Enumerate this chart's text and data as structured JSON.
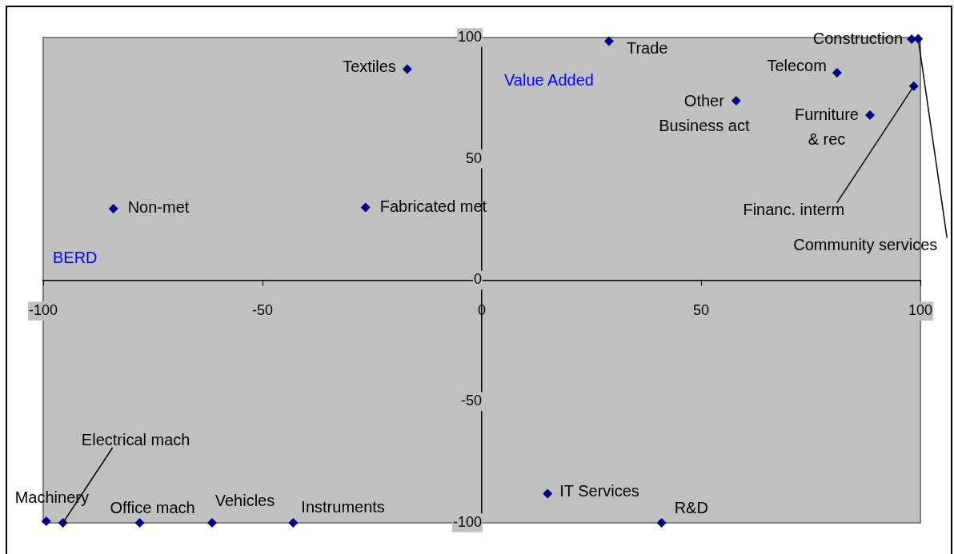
{
  "chart_data": {
    "type": "scatter",
    "xlabel": "BERD",
    "ylabel": "Value Added",
    "marker": "diamond",
    "color": "#000080",
    "x": [
      -17,
      29,
      58,
      81,
      98,
      99.5,
      98.5,
      88.5,
      -84,
      -26.5,
      -99.3,
      -95.5,
      -78,
      -61.5,
      -43,
      15,
      41
    ],
    "values": [
      87,
      98.5,
      74,
      85.5,
      99.3,
      99.5,
      80,
      68,
      29.5,
      30,
      -99.3,
      -100,
      -100,
      -100,
      -100,
      -88,
      -100
    ],
    "annotations": [
      {
        "text": "Textiles",
        "x": -17,
        "y": 87
      },
      {
        "text": "Trade",
        "x": 29,
        "y": 98.5
      },
      {
        "text": "Other Business act",
        "x": 58,
        "y": 74
      },
      {
        "text": "Telecom",
        "x": 81,
        "y": 85.5
      },
      {
        "text": "Construction",
        "x": 98,
        "y": 99.3
      },
      {
        "text": "Community services",
        "x": 99.5,
        "y": 99.5
      },
      {
        "text": "Financ. interm",
        "x": 98.5,
        "y": 80
      },
      {
        "text": "Furniture & rec",
        "x": 88.5,
        "y": 68
      },
      {
        "text": "Non-met",
        "x": -84,
        "y": 29.5
      },
      {
        "text": "Fabricated met",
        "x": -26.5,
        "y": 30
      },
      {
        "text": "Machinery",
        "x": -99.3,
        "y": -99.3
      },
      {
        "text": "Electrical mach",
        "x": -95.5,
        "y": -100
      },
      {
        "text": "Office mach",
        "x": -78,
        "y": -100
      },
      {
        "text": "Vehicles",
        "x": -61.5,
        "y": -100
      },
      {
        "text": "Instruments",
        "x": -43,
        "y": -100
      },
      {
        "text": "IT Services",
        "x": 15,
        "y": -88
      },
      {
        "text": "R&D",
        "x": 41,
        "y": -100
      }
    ],
    "xlim": [
      -100,
      100
    ],
    "ylim": [
      -100,
      100
    ],
    "xticks": [
      -100,
      -50,
      0,
      50,
      100
    ],
    "yticks": [
      -100,
      -50,
      0,
      50,
      100
    ]
  }
}
